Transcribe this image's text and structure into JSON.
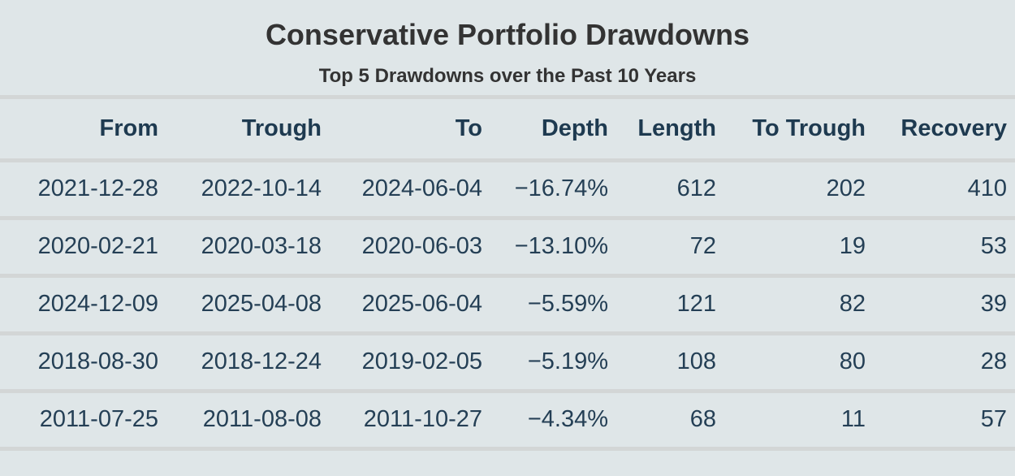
{
  "title": "Conservative Portfolio Drawdowns",
  "subtitle": "Top 5 Drawdowns over the Past 10 Years",
  "colors": {
    "background": "#dfe6e8",
    "divider": "#d3d6d6",
    "title_text": "#333333",
    "header_text": "#1e3a50",
    "cell_text": "#243f55"
  },
  "table": {
    "columns": [
      "From",
      "Trough",
      "To",
      "Depth",
      "Length",
      "To Trough",
      "Recovery"
    ],
    "rows": [
      [
        "2021-12-28",
        "2022-10-14",
        "2024-06-04",
        "−16.74%",
        "612",
        "202",
        "410"
      ],
      [
        "2020-02-21",
        "2020-03-18",
        "2020-06-03",
        "−13.10%",
        "72",
        "19",
        "53"
      ],
      [
        "2024-12-09",
        "2025-04-08",
        "2025-06-04",
        "−5.59%",
        "121",
        "82",
        "39"
      ],
      [
        "2018-08-30",
        "2018-12-24",
        "2019-02-05",
        "−5.19%",
        "108",
        "80",
        "28"
      ],
      [
        "2011-07-25",
        "2011-08-08",
        "2011-10-27",
        "−4.34%",
        "68",
        "11",
        "57"
      ]
    ]
  }
}
